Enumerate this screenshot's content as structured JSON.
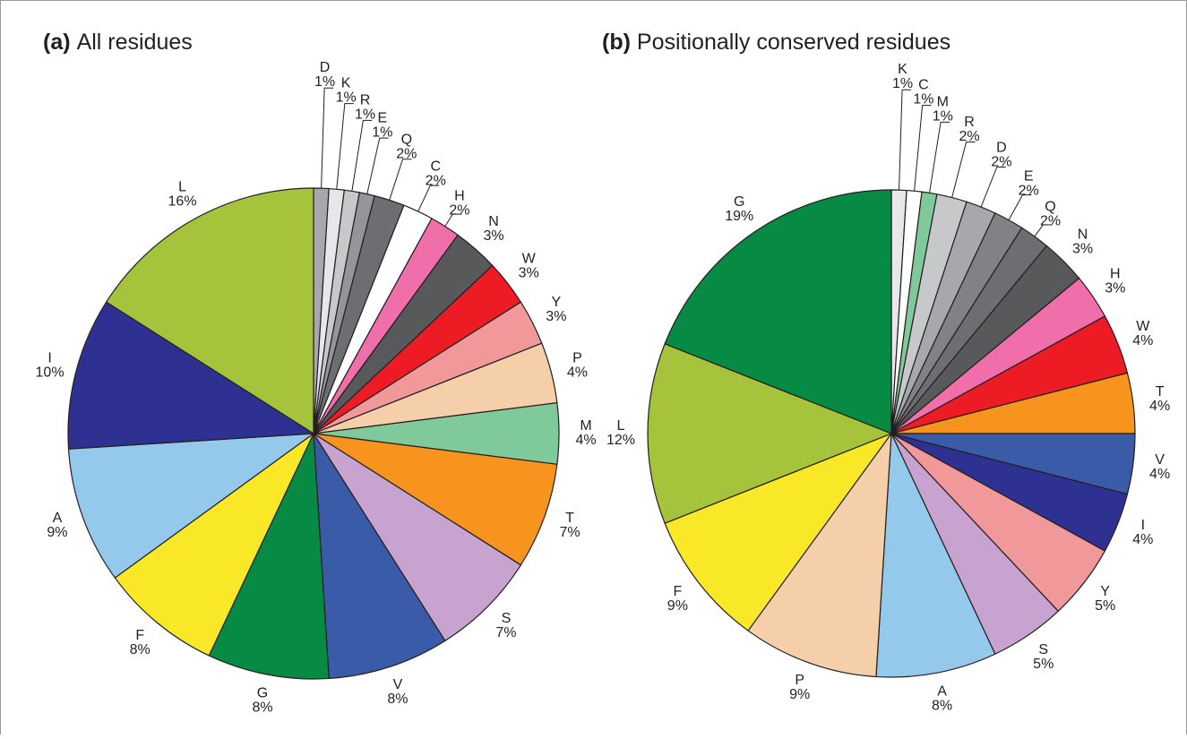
{
  "chart_data": [
    {
      "type": "pie",
      "label": "(a)",
      "title": "All residues",
      "categories": [
        "D",
        "K",
        "R",
        "E",
        "Q",
        "C",
        "H",
        "N",
        "W",
        "Y",
        "P",
        "M",
        "T",
        "S",
        "V",
        "G",
        "F",
        "A",
        "I",
        "L"
      ],
      "values": [
        1,
        1,
        1,
        1,
        2,
        2,
        2,
        3,
        3,
        3,
        4,
        4,
        7,
        7,
        8,
        8,
        8,
        9,
        10,
        16
      ],
      "value_labels": [
        "1%",
        "1%",
        "1%",
        "1%",
        "2%",
        "2%",
        "2%",
        "3%",
        "3%",
        "3%",
        "4%",
        "4%",
        "7%",
        "7%",
        "8%",
        "8%",
        "8%",
        "9%",
        "10%",
        "16%"
      ],
      "colors": [
        "#a6a8ab",
        "#e6e7e8",
        "#c7c8ca",
        "#939598",
        "#6d6e71",
        "#ffffff",
        "#f06ea9",
        "#58595b",
        "#ed1c24",
        "#f0989a",
        "#f5cfa9",
        "#80c99a",
        "#f7941d",
        "#c9a3cf",
        "#3a5ba7",
        "#078a44",
        "#f9e827",
        "#94c9ec",
        "#2e3192",
        "#a5c33b"
      ]
    },
    {
      "type": "pie",
      "label": "(b)",
      "title": "Positionally conserved residues",
      "categories": [
        "K",
        "C",
        "M",
        "R",
        "D",
        "E",
        "Q",
        "N",
        "H",
        "W",
        "T",
        "V",
        "I",
        "Y",
        "S",
        "A",
        "P",
        "F",
        "L",
        "G"
      ],
      "values": [
        1,
        1,
        1,
        2,
        2,
        2,
        2,
        3,
        3,
        4,
        4,
        4,
        4,
        5,
        5,
        8,
        9,
        9,
        12,
        19
      ],
      "value_labels": [
        "1%",
        "1%",
        "1%",
        "2%",
        "2%",
        "2%",
        "2%",
        "3%",
        "3%",
        "4%",
        "4%",
        "4%",
        "4%",
        "5%",
        "5%",
        "8%",
        "9%",
        "9%",
        "12%",
        "19%"
      ],
      "colors": [
        "#e6e7e8",
        "#ffffff",
        "#80c99a",
        "#c7c8ca",
        "#a6a8ab",
        "#808285",
        "#6d6e71",
        "#58595b",
        "#f06ea9",
        "#ed1c24",
        "#f7941d",
        "#3a5ba7",
        "#2e3192",
        "#f0989a",
        "#c9a3cf",
        "#94c9ec",
        "#f5cfa9",
        "#f9e827",
        "#a5c33b",
        "#078a44"
      ]
    }
  ]
}
